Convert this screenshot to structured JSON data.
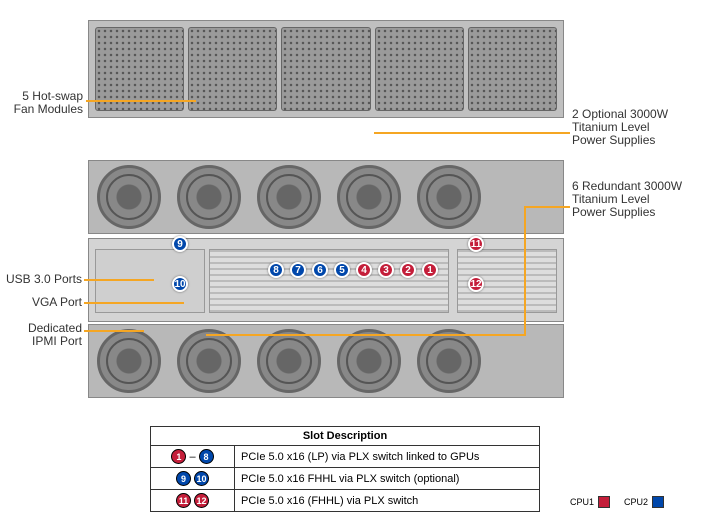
{
  "labels": {
    "fan": "5 Hot-swap\nFan Modules",
    "opt_psu": "2 Optional 3000W\nTitanium Level\nPower Supplies",
    "red_psu": "6 Redundant 3000W\nTitanium Level\nPower Supplies",
    "usb": "USB 3.0 Ports",
    "vga": "VGA Port",
    "ipmi": "Dedicated\nIPMI Port"
  },
  "badges": {
    "center": [
      {
        "n": "8",
        "c": "blue"
      },
      {
        "n": "7",
        "c": "blue"
      },
      {
        "n": "6",
        "c": "blue"
      },
      {
        "n": "5",
        "c": "blue"
      },
      {
        "n": "4",
        "c": "red"
      },
      {
        "n": "3",
        "c": "red"
      },
      {
        "n": "2",
        "c": "red"
      },
      {
        "n": "1",
        "c": "red"
      }
    ],
    "b9": {
      "n": "9",
      "c": "blue"
    },
    "b10": {
      "n": "10",
      "c": "blue"
    },
    "b11": {
      "n": "11",
      "c": "red"
    },
    "b12": {
      "n": "12",
      "c": "red"
    }
  },
  "table": {
    "header": "Slot Description",
    "rows": [
      {
        "badges": [
          {
            "n": "1",
            "c": "red"
          },
          {
            "dash": true
          },
          {
            "n": "8",
            "c": "blue"
          }
        ],
        "text": "PCIe 5.0 x16 (LP) via PLX switch linked to GPUs"
      },
      {
        "badges": [
          {
            "n": "9",
            "c": "blue"
          },
          {
            "n": "10",
            "c": "blue"
          }
        ],
        "text": "PCIe 5.0 x16 FHHL via PLX switch (optional)"
      },
      {
        "badges": [
          {
            "n": "11",
            "c": "red"
          },
          {
            "n": "12",
            "c": "red"
          }
        ],
        "text": "PCIe 5.0 x16 (FHHL) via PLX switch"
      }
    ]
  },
  "legend": {
    "cpu1": "CPU1",
    "cpu2": "CPU2",
    "cpu1_color": "#c41e3a",
    "cpu2_color": "#0047ab"
  },
  "colors": {
    "leader": "#f5a623"
  }
}
